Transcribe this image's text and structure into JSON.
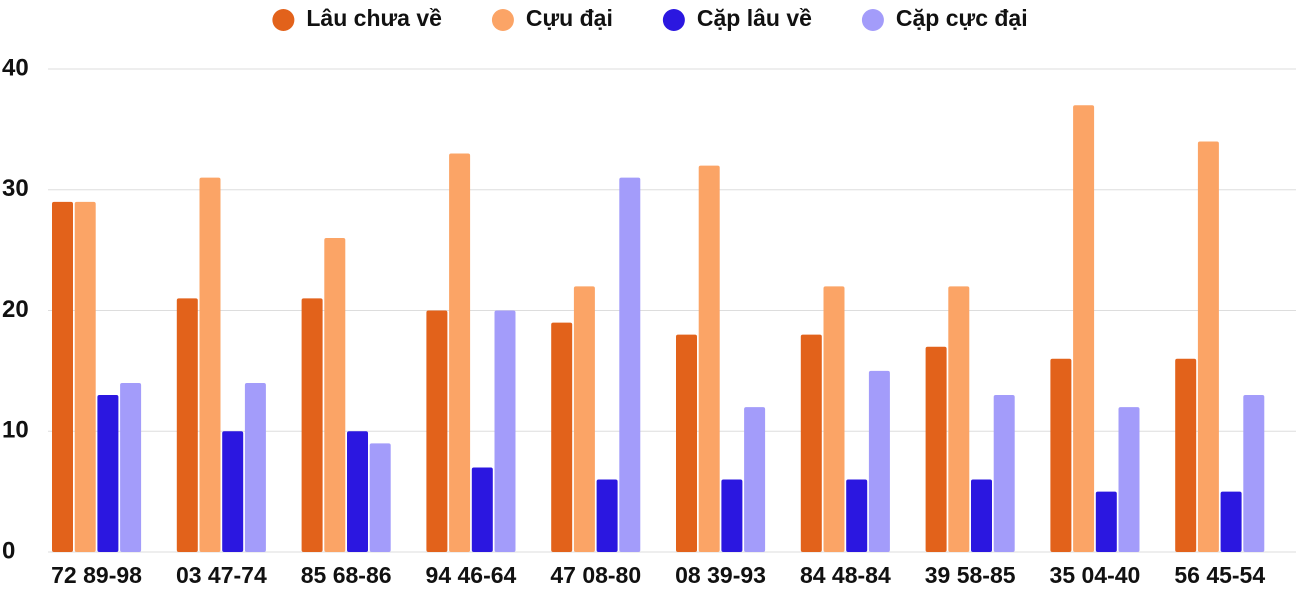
{
  "chart_data": {
    "type": "bar",
    "categories": [
      "72 89-98",
      "03 47-74",
      "85 68-86",
      "94 46-64",
      "47 08-80",
      "08 39-93",
      "84 48-84",
      "39 58-85",
      "35 04-40",
      "56 45-54"
    ],
    "series": [
      {
        "name": "Lâu chưa về",
        "color": "#e2621b",
        "values": [
          29,
          21,
          21,
          20,
          19,
          18,
          18,
          17,
          16,
          16
        ]
      },
      {
        "name": "Cựu đại",
        "color": "#fba466",
        "values": [
          29,
          31,
          26,
          33,
          22,
          32,
          22,
          22,
          37,
          34
        ]
      },
      {
        "name": "Cặp lâu về",
        "color": "#2b17e0",
        "values": [
          13,
          10,
          10,
          7,
          6,
          6,
          6,
          6,
          5,
          5
        ]
      },
      {
        "name": "Cặp cực đại",
        "color": "#a39cfa",
        "values": [
          14,
          14,
          9,
          20,
          31,
          12,
          15,
          13,
          12,
          13
        ]
      }
    ],
    "ylim": [
      0,
      40
    ],
    "yticks": [
      0,
      10,
      20,
      30,
      40
    ],
    "grid": true,
    "legend": "top"
  }
}
